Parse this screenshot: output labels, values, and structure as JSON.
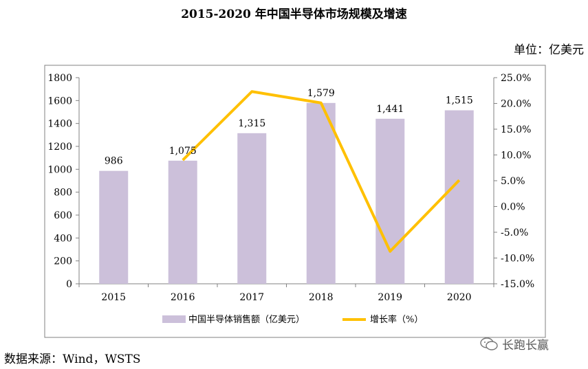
{
  "title": "2015-2020 年中国半导体市场规模及增速",
  "unit_label": "单位：亿美元",
  "source": "数据来源：Wind，WSTS",
  "watermark": "长跑长赢",
  "colors": {
    "bar": "#CCC0DA",
    "line": "#FFC000",
    "axis": "#808080",
    "frame": "#808080"
  },
  "chart_data": {
    "type": "bar+line",
    "categories": [
      "2015",
      "2016",
      "2017",
      "2018",
      "2019",
      "2020"
    ],
    "series": [
      {
        "name": "中国半导体销售额（亿美元）",
        "type": "bar",
        "axis": "left",
        "values": [
          986,
          1075,
          1315,
          1579,
          1441,
          1515
        ],
        "data_labels": [
          "986",
          "1,075",
          "1,315",
          "1,579",
          "1,441",
          "1,515"
        ]
      },
      {
        "name": "增长率（%）",
        "type": "line",
        "axis": "right",
        "values": [
          null,
          9.0,
          22.3,
          20.1,
          -8.7,
          5.1
        ]
      }
    ],
    "y_left": {
      "ylim": [
        0,
        1800
      ],
      "ticks": [
        "0",
        "200",
        "400",
        "600",
        "800",
        "1000",
        "1200",
        "1400",
        "1600",
        "1800"
      ]
    },
    "y_right": {
      "ylim": [
        -15,
        25
      ],
      "ticks": [
        "-15.0%",
        "-10.0%",
        "-5.0%",
        "0.0%",
        "5.0%",
        "10.0%",
        "15.0%",
        "20.0%",
        "25.0%"
      ]
    },
    "legend_position": "bottom",
    "grid": false
  }
}
